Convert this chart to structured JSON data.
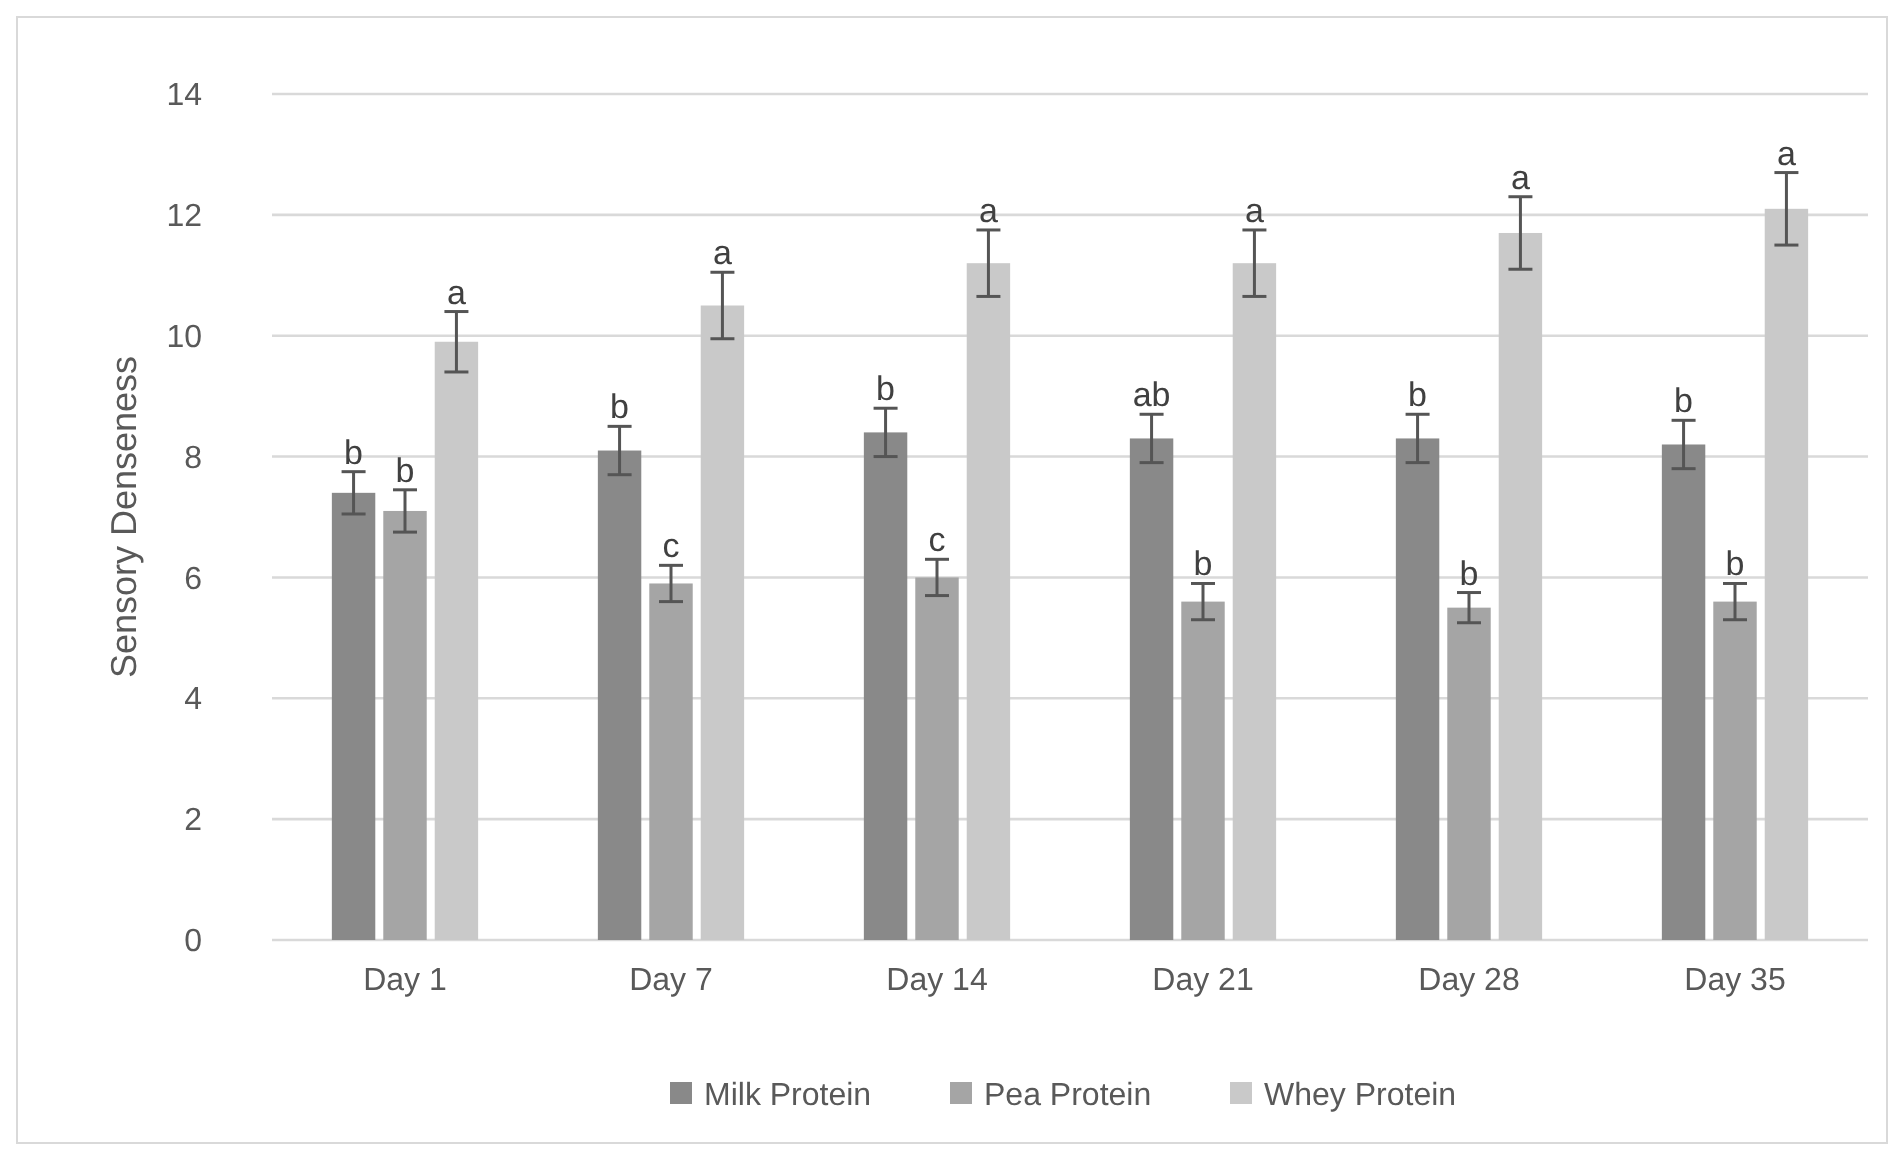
{
  "chart_data": {
    "type": "bar",
    "ylabel": "Sensory Denseness",
    "categories": [
      "Day 1",
      "Day 7",
      "Day 14",
      "Day 21",
      "Day 28",
      "Day 35"
    ],
    "series": [
      {
        "name": "Milk Protein",
        "color": "#898989",
        "values": [
          7.4,
          8.1,
          8.4,
          8.3,
          8.3,
          8.2
        ],
        "errors": [
          0.35,
          0.4,
          0.4,
          0.4,
          0.4,
          0.4
        ]
      },
      {
        "name": "Pea Protein",
        "color": "#a5a5a5",
        "values": [
          7.1,
          5.9,
          6.0,
          5.6,
          5.5,
          5.6
        ],
        "errors": [
          0.35,
          0.3,
          0.3,
          0.3,
          0.25,
          0.3
        ]
      },
      {
        "name": "Whey Protein",
        "color": "#c9c9c9",
        "values": [
          9.9,
          10.5,
          11.2,
          11.2,
          11.7,
          12.1
        ],
        "errors": [
          0.5,
          0.55,
          0.55,
          0.55,
          0.6,
          0.6
        ]
      }
    ],
    "annotations": [
      "b",
      "b",
      "a",
      "b",
      "c",
      "a",
      "b",
      "c",
      "a",
      "ab",
      "b",
      "a",
      "b",
      "b",
      "a",
      "b",
      "b",
      "a"
    ],
    "ylim": [
      0,
      14
    ],
    "yticks": [
      0,
      2,
      4,
      6,
      8,
      10,
      12,
      14
    ],
    "grid": "y",
    "legend": "bottom"
  }
}
